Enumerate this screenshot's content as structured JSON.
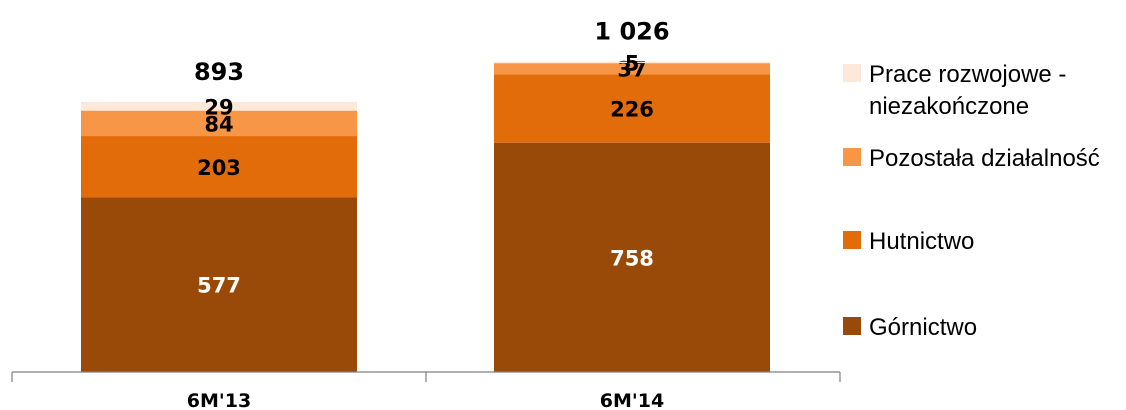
{
  "chart_data": {
    "type": "bar",
    "stacked": true,
    "categories": [
      "6M'13",
      "6M'14"
    ],
    "totals": [
      "893",
      "1 026"
    ],
    "series": [
      {
        "name": "Górnictwo",
        "values": [
          577,
          758
        ],
        "color": "#9A4A08"
      },
      {
        "name": "Hutnictwo",
        "values": [
          203,
          226
        ],
        "color": "#E36C0A"
      },
      {
        "name": "Pozostała działalność",
        "values": [
          84,
          37
        ],
        "color": "#F79646"
      },
      {
        "name": "Prace rozwojowe - niezakończone",
        "values": [
          29,
          5
        ],
        "color": "#FDE9D9"
      }
    ],
    "legend_position": "right",
    "grid": false,
    "ylim": [
      0,
      1100
    ]
  }
}
